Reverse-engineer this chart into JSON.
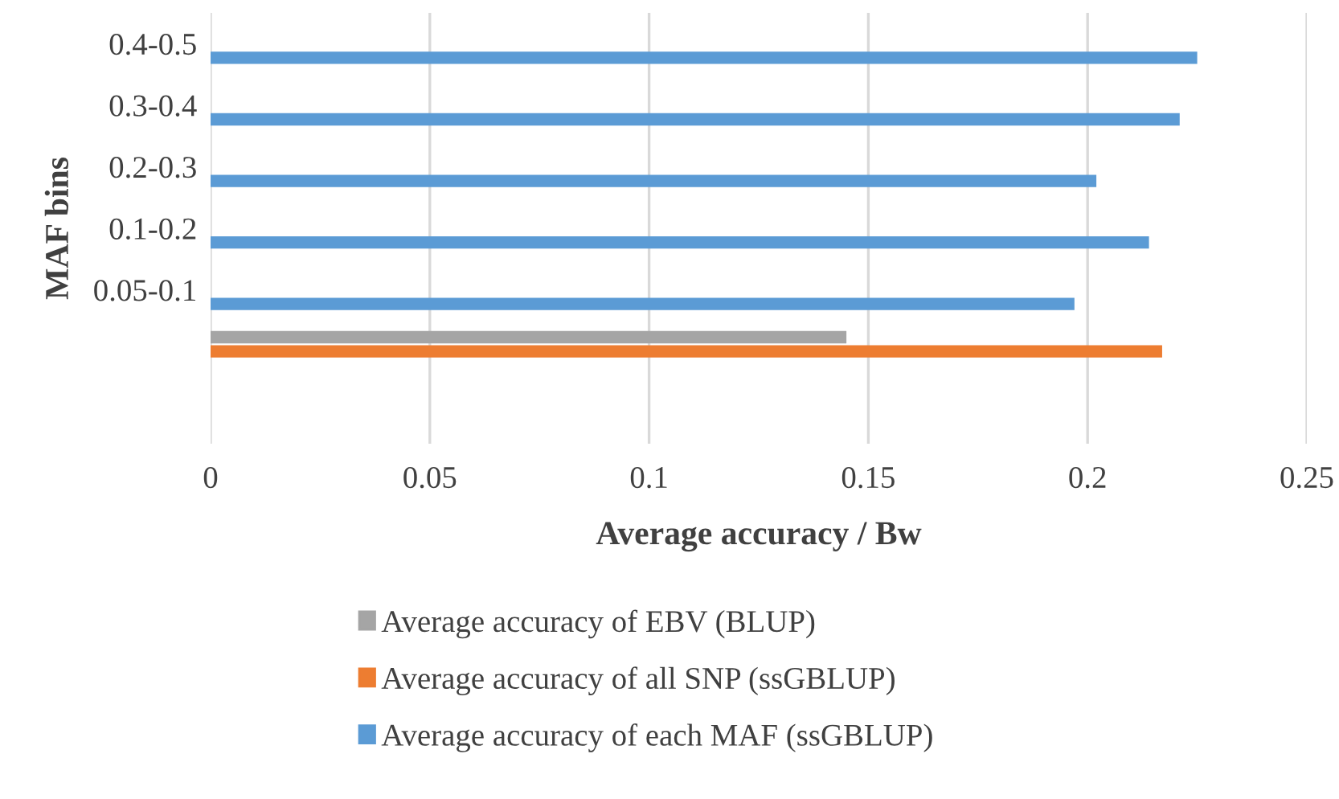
{
  "chart_data": {
    "type": "bar",
    "orientation": "horizontal",
    "xlabel": "Average accuracy / Bw",
    "ylabel": "MAF bins",
    "categories": [
      "0.4-0.5",
      "0.3-0.4",
      "0.2-0.3",
      "0.1-0.2",
      "0.05-0.1",
      null,
      null
    ],
    "series": [
      {
        "name": "Average accuracy of EBV (BLUP)",
        "color": "#a5a5a5",
        "values": [
          null,
          null,
          null,
          null,
          null,
          0.145,
          null
        ]
      },
      {
        "name": "Average accuracy of all SNP (ssGBLUP)",
        "color": "#ed7d31",
        "values": [
          null,
          null,
          null,
          null,
          null,
          0.217,
          null
        ]
      },
      {
        "name": "Average accuracy of each MAF (ssGBLUP)",
        "color": "#5b9bd5",
        "values": [
          0.225,
          0.221,
          0.202,
          0.214,
          0.197,
          null,
          null
        ]
      }
    ],
    "xlim": [
      0,
      0.25
    ],
    "xticks": [
      0,
      0.05,
      0.1,
      0.15,
      0.2,
      0.25
    ],
    "grid": "x",
    "legend": "bottom"
  }
}
